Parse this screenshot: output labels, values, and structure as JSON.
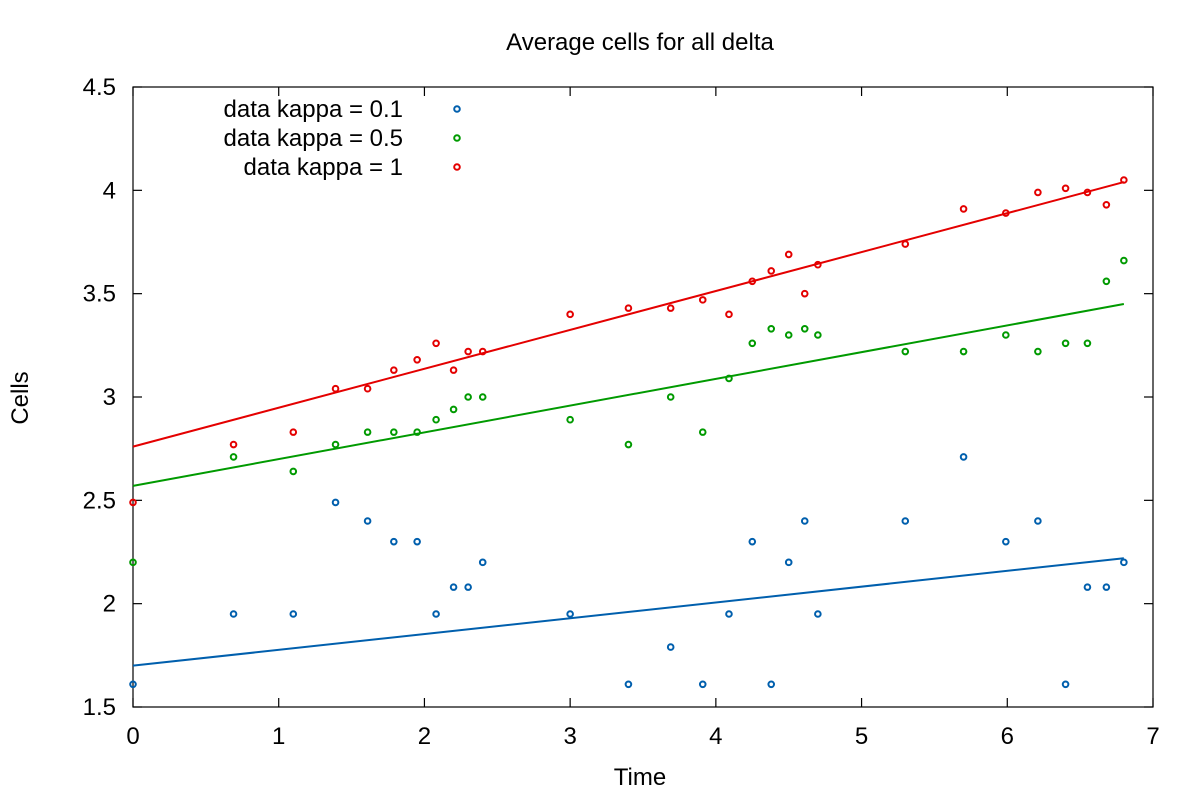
{
  "chart_data": {
    "type": "scatter",
    "title": "Average cells for all delta",
    "xlabel": "Time",
    "ylabel": "Cells",
    "xlim": [
      0,
      7
    ],
    "ylim": [
      1.5,
      4.5
    ],
    "xticks": [
      0,
      1,
      2,
      3,
      4,
      5,
      6,
      7
    ],
    "xtick_labels": [
      "0",
      "1",
      "2",
      "3",
      "4",
      "5",
      "6",
      "7"
    ],
    "yticks": [
      1.5,
      2,
      2.5,
      3,
      3.5,
      4,
      4.5
    ],
    "ytick_labels": [
      "1.5",
      "2",
      "2.5",
      "3",
      "3.5",
      "4",
      "4.5"
    ],
    "grid": false,
    "legend": "top-left",
    "series": [
      {
        "name": "data kappa = 0.1",
        "color": "#005fad",
        "points": [
          [
            0,
            1.61
          ],
          [
            0.69,
            1.95
          ],
          [
            1.1,
            1.95
          ],
          [
            1.39,
            2.49
          ],
          [
            1.61,
            2.4
          ],
          [
            1.79,
            2.3
          ],
          [
            1.95,
            2.3
          ],
          [
            2.08,
            1.95
          ],
          [
            2.2,
            2.08
          ],
          [
            2.3,
            2.08
          ],
          [
            2.4,
            2.2
          ],
          [
            3.0,
            1.95
          ],
          [
            3.4,
            1.61
          ],
          [
            3.69,
            1.79
          ],
          [
            3.91,
            1.61
          ],
          [
            4.09,
            1.95
          ],
          [
            4.25,
            2.3
          ],
          [
            4.38,
            1.61
          ],
          [
            4.5,
            2.2
          ],
          [
            4.61,
            2.4
          ],
          [
            4.7,
            1.95
          ],
          [
            5.3,
            2.4
          ],
          [
            5.7,
            2.71
          ],
          [
            5.99,
            2.3
          ],
          [
            6.21,
            2.4
          ],
          [
            6.4,
            1.61
          ],
          [
            6.55,
            2.08
          ],
          [
            6.68,
            2.08
          ],
          [
            6.8,
            2.2
          ]
        ],
        "fit": [
          [
            0,
            1.7
          ],
          [
            6.8,
            2.22
          ]
        ]
      },
      {
        "name": "data kappa = 0.5",
        "color": "#009a00",
        "points": [
          [
            0,
            2.2
          ],
          [
            0.69,
            2.71
          ],
          [
            1.1,
            2.64
          ],
          [
            1.39,
            2.77
          ],
          [
            1.61,
            2.83
          ],
          [
            1.79,
            2.83
          ],
          [
            1.95,
            2.83
          ],
          [
            2.08,
            2.89
          ],
          [
            2.2,
            2.94
          ],
          [
            2.3,
            3.0
          ],
          [
            2.4,
            3.0
          ],
          [
            3.0,
            2.89
          ],
          [
            3.4,
            2.77
          ],
          [
            3.69,
            3.0
          ],
          [
            3.91,
            2.83
          ],
          [
            4.09,
            3.09
          ],
          [
            4.25,
            3.26
          ],
          [
            4.38,
            3.33
          ],
          [
            4.5,
            3.3
          ],
          [
            4.61,
            3.33
          ],
          [
            4.7,
            3.3
          ],
          [
            5.3,
            3.22
          ],
          [
            5.7,
            3.22
          ],
          [
            5.99,
            3.3
          ],
          [
            6.21,
            3.22
          ],
          [
            6.4,
            3.26
          ],
          [
            6.55,
            3.26
          ],
          [
            6.68,
            3.56
          ],
          [
            6.8,
            3.66
          ]
        ],
        "fit": [
          [
            0,
            2.57
          ],
          [
            6.8,
            3.45
          ]
        ]
      },
      {
        "name": "data kappa = 1",
        "color": "#e40000",
        "points": [
          [
            0,
            2.49
          ],
          [
            0.69,
            2.77
          ],
          [
            1.1,
            2.83
          ],
          [
            1.39,
            3.04
          ],
          [
            1.61,
            3.04
          ],
          [
            1.79,
            3.13
          ],
          [
            1.95,
            3.18
          ],
          [
            2.08,
            3.26
          ],
          [
            2.2,
            3.13
          ],
          [
            2.3,
            3.22
          ],
          [
            2.4,
            3.22
          ],
          [
            3.0,
            3.4
          ],
          [
            3.4,
            3.43
          ],
          [
            3.69,
            3.43
          ],
          [
            3.91,
            3.47
          ],
          [
            4.09,
            3.4
          ],
          [
            4.25,
            3.56
          ],
          [
            4.38,
            3.61
          ],
          [
            4.5,
            3.69
          ],
          [
            4.61,
            3.5
          ],
          [
            4.7,
            3.64
          ],
          [
            5.3,
            3.74
          ],
          [
            5.7,
            3.91
          ],
          [
            5.99,
            3.89
          ],
          [
            6.21,
            3.99
          ],
          [
            6.4,
            4.01
          ],
          [
            6.55,
            3.99
          ],
          [
            6.68,
            3.93
          ],
          [
            6.8,
            4.05
          ]
        ],
        "fit": [
          [
            0,
            2.76
          ],
          [
            6.8,
            4.04
          ]
        ]
      }
    ]
  }
}
